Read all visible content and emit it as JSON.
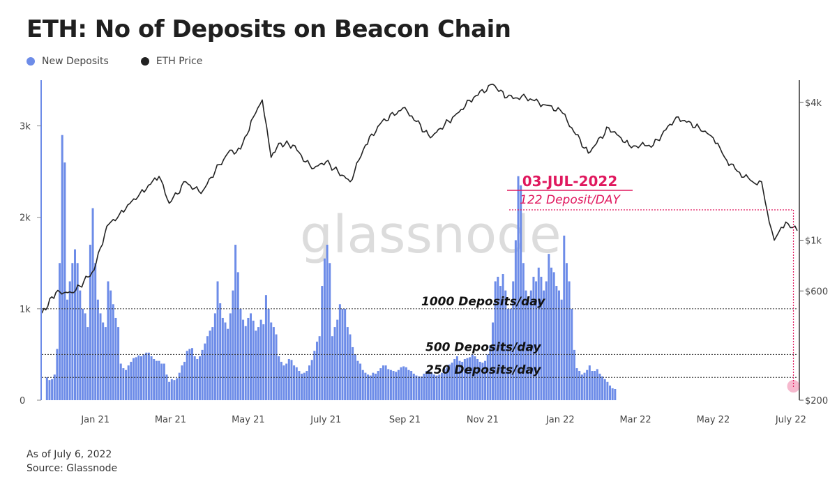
{
  "chart_data": {
    "type": "bar",
    "title": "ETH: No of Deposits on Beacon Chain",
    "legend": [
      {
        "name": "New Deposits",
        "color": "#6d8ce8"
      },
      {
        "name": "ETH Price",
        "color": "#222222"
      }
    ],
    "legend_position": "top-left",
    "watermark": "glassnode",
    "x_range": [
      "2020-11-20",
      "2022-07-06"
    ],
    "x_ticks": [
      {
        "date": "2021-01-01",
        "label": "Jan 21"
      },
      {
        "date": "2021-03-01",
        "label": "Mar 21"
      },
      {
        "date": "2021-05-01",
        "label": "May 21"
      },
      {
        "date": "2021-07-01",
        "label": "July 21"
      },
      {
        "date": "2021-09-01",
        "label": "Sep 21"
      },
      {
        "date": "2021-11-01",
        "label": "Nov 21"
      },
      {
        "date": "2022-01-01",
        "label": "Jan 22"
      },
      {
        "date": "2022-03-01",
        "label": "Mar 22"
      },
      {
        "date": "2022-05-01",
        "label": "May 22"
      },
      {
        "date": "2022-07-01",
        "label": "July 22"
      }
    ],
    "y_left": {
      "range": [
        0,
        3500
      ],
      "ticks": [
        {
          "value": 0,
          "label": "0"
        },
        {
          "value": 1000,
          "label": "1k"
        },
        {
          "value": 2000,
          "label": "2k"
        },
        {
          "value": 3000,
          "label": "3k"
        }
      ]
    },
    "y_right": {
      "scale": "log",
      "range": [
        200,
        5000
      ],
      "ticks": [
        {
          "value": 200,
          "label": "$200"
        },
        {
          "value": 600,
          "label": "$600"
        },
        {
          "value": 1000,
          "label": "$1k"
        },
        {
          "value": 4000,
          "label": "$4k"
        }
      ]
    },
    "grid": false,
    "deposits_series": {
      "name": "New Deposits",
      "start": "2020-11-24",
      "step_days": 2,
      "values": [
        250,
        220,
        230,
        280,
        560,
        1500,
        2900,
        2600,
        1100,
        1300,
        1500,
        1650,
        1500,
        1200,
        1000,
        950,
        800,
        1700,
        2100,
        1500,
        1100,
        950,
        850,
        800,
        1300,
        1200,
        1050,
        900,
        800,
        400,
        350,
        330,
        380,
        420,
        460,
        470,
        490,
        480,
        500,
        520,
        520,
        480,
        450,
        430,
        430,
        400,
        400,
        280,
        200,
        230,
        220,
        240,
        300,
        380,
        420,
        540,
        560,
        570,
        480,
        450,
        480,
        550,
        620,
        700,
        760,
        800,
        950,
        1300,
        1060,
        900,
        850,
        780,
        950,
        1200,
        1700,
        1400,
        1000,
        880,
        810,
        900,
        950,
        870,
        760,
        800,
        880,
        830,
        1150,
        1000,
        850,
        800,
        720,
        480,
        420,
        380,
        400,
        450,
        440,
        380,
        360,
        320,
        290,
        300,
        320,
        380,
        440,
        540,
        640,
        700,
        1250,
        1550,
        1700,
        1500,
        700,
        800,
        880,
        1050,
        1000,
        1000,
        800,
        720,
        580,
        500,
        430,
        400,
        330,
        300,
        280,
        270,
        300,
        290,
        320,
        350,
        380,
        380,
        340,
        330,
        320,
        310,
        330,
        360,
        370,
        360,
        330,
        320,
        290,
        270,
        260,
        260,
        290,
        320,
        330,
        300,
        280,
        270,
        280,
        300,
        340,
        360,
        390,
        410,
        450,
        480,
        430,
        420,
        450,
        460,
        470,
        500,
        480,
        450,
        420,
        410,
        430,
        500,
        600,
        850,
        1300,
        1350,
        1250,
        1380,
        1200,
        1000,
        1000,
        1300,
        1750,
        2450,
        2350,
        1500,
        1200,
        1100,
        1200,
        1350,
        1300,
        1450,
        1350,
        1200,
        1300,
        1600,
        1450,
        1400,
        1250,
        1200,
        1100,
        1800,
        1500,
        1300,
        1000,
        550,
        350,
        320,
        280,
        300,
        330,
        380,
        320,
        320,
        340,
        290,
        260,
        230,
        200,
        160,
        130,
        122
      ]
    },
    "price_series": {
      "name": "ETH Price",
      "points": [
        [
          "2020-11-20",
          480
        ],
        [
          "2020-12-01",
          590
        ],
        [
          "2020-12-15",
          590
        ],
        [
          "2020-12-31",
          740
        ],
        [
          "2021-01-10",
          1150
        ],
        [
          "2021-01-20",
          1300
        ],
        [
          "2021-02-05",
          1600
        ],
        [
          "2021-02-20",
          1900
        ],
        [
          "2021-02-28",
          1450
        ],
        [
          "2021-03-13",
          1800
        ],
        [
          "2021-03-25",
          1600
        ],
        [
          "2021-04-05",
          2000
        ],
        [
          "2021-04-15",
          2400
        ],
        [
          "2021-04-25",
          2500
        ],
        [
          "2021-05-05",
          3450
        ],
        [
          "2021-05-12",
          4100
        ],
        [
          "2021-05-19",
          2300
        ],
        [
          "2021-05-25",
          2650
        ],
        [
          "2021-06-05",
          2600
        ],
        [
          "2021-06-20",
          2050
        ],
        [
          "2021-07-01",
          2200
        ],
        [
          "2021-07-20",
          1800
        ],
        [
          "2021-08-01",
          2600
        ],
        [
          "2021-08-14",
          3300
        ],
        [
          "2021-09-01",
          3800
        ],
        [
          "2021-09-10",
          3300
        ],
        [
          "2021-09-21",
          2800
        ],
        [
          "2021-10-10",
          3500
        ],
        [
          "2021-10-25",
          4200
        ],
        [
          "2021-11-09",
          4800
        ],
        [
          "2021-11-20",
          4200
        ],
        [
          "2021-12-05",
          4200
        ],
        [
          "2021-12-20",
          3900
        ],
        [
          "2022-01-01",
          3700
        ],
        [
          "2022-01-10",
          3100
        ],
        [
          "2022-01-23",
          2400
        ],
        [
          "2022-02-08",
          3100
        ],
        [
          "2022-02-24",
          2600
        ],
        [
          "2022-03-05",
          2600
        ],
        [
          "2022-03-15",
          2600
        ],
        [
          "2022-04-02",
          3450
        ],
        [
          "2022-04-20",
          3100
        ],
        [
          "2022-05-01",
          2800
        ],
        [
          "2022-05-10",
          2300
        ],
        [
          "2022-05-20",
          2000
        ],
        [
          "2022-06-01",
          1800
        ],
        [
          "2022-06-08",
          1800
        ],
        [
          "2022-06-14",
          1200
        ],
        [
          "2022-06-18",
          1000
        ],
        [
          "2022-06-27",
          1200
        ],
        [
          "2022-07-06",
          1100
        ]
      ]
    },
    "reference_lines": [
      {
        "value": 1000,
        "label": "1000 Deposits/day"
      },
      {
        "value": 500,
        "label": "500 Deposits/day"
      },
      {
        "value": 250,
        "label": "250 Deposits/day"
      }
    ],
    "annotation": {
      "date": "2022-07-03",
      "title": "03-JUL-2022",
      "subtitle": "122 Deposit/DAY",
      "value": 122,
      "color": "#e0185e"
    }
  },
  "footer": {
    "line1": "As of July 6, 2022",
    "line2": "Source: Glassnode"
  }
}
